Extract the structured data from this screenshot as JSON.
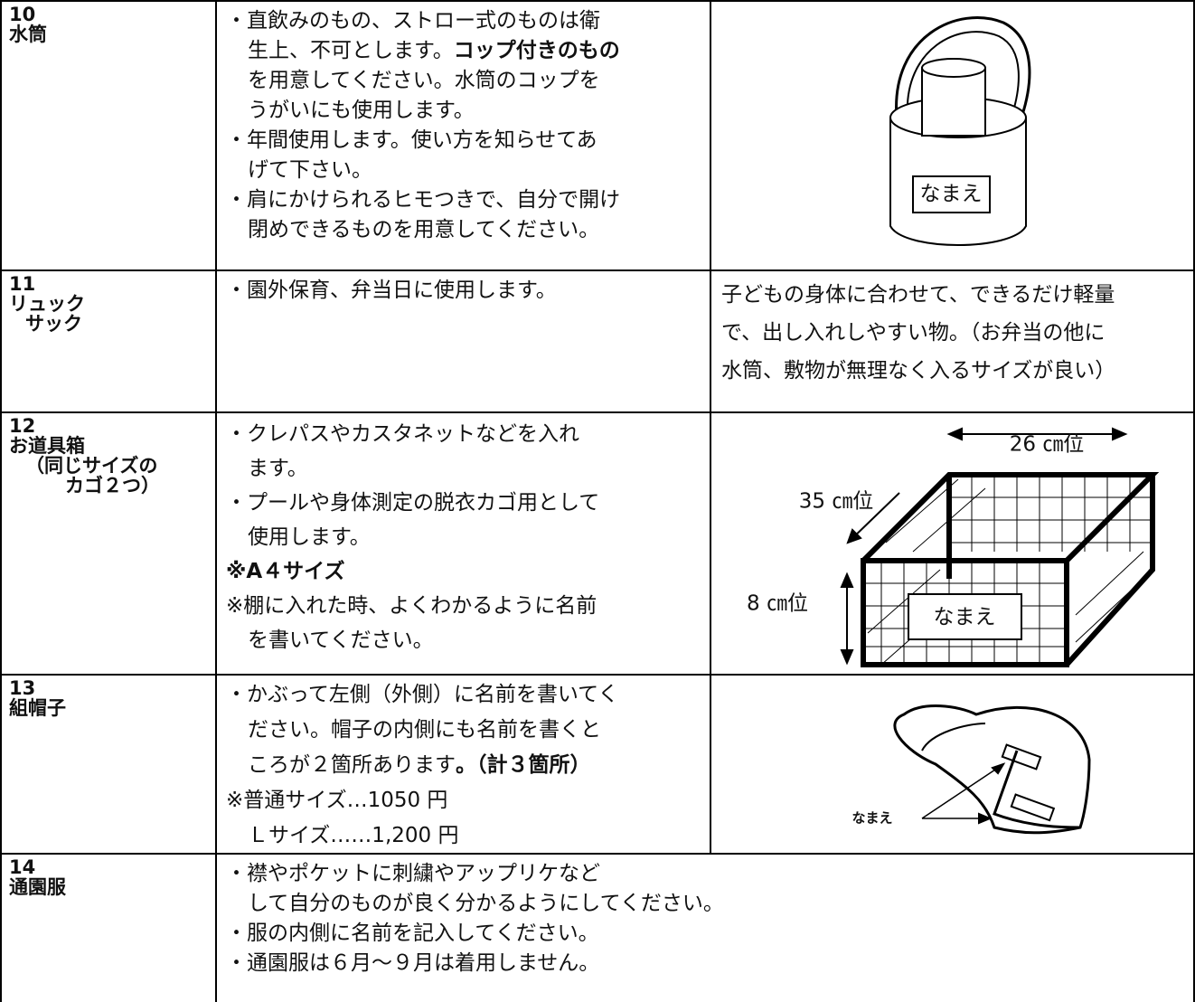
{
  "rows": [
    {
      "number": "10",
      "name": [
        "水筒"
      ],
      "notes": [
        [
          {
            "text": "・直飲みのもの、ストロー式のものは衛"
          }
        ],
        [
          {
            "text": "生上、不可とします。"
          },
          {
            "text": "コップ付きのもの",
            "bold": true
          }
        ],
        [
          {
            "text": "を用意してください。水筒のコップを"
          }
        ],
        [
          {
            "text": "うがいにも使用します。"
          }
        ],
        [
          {
            "text": "・年間使用します。使い方を知らせてあ"
          }
        ],
        [
          {
            "text": "げて下さい。"
          }
        ],
        [
          {
            "text": "・肩にかけられるヒモつきで、自分で開け"
          }
        ],
        [
          {
            "text": "閉めできるものを用意してください。"
          }
        ]
      ]
    },
    {
      "number": "11",
      "name": [
        "リュック",
        "サック"
      ],
      "notes": [
        [
          {
            "text": "・園外保育、弁当日に使用します。"
          }
        ]
      ],
      "description": [
        "子どもの身体に合わせて、できるだけ軽量",
        "で、出し入れしやすい物。（お弁当の他に",
        "水筒、敷物が無理なく入るサイズが良い）"
      ]
    },
    {
      "number": "12",
      "name": [
        "お道具箱",
        "（同じサイズの",
        "カゴ２つ）"
      ],
      "notes": [
        [
          {
            "text": "・クレパスやカスタネットなどを入れ"
          }
        ],
        [
          {
            "text": "ます。"
          }
        ],
        [
          {
            "text": "・プールや身体測定の脱衣カゴ用として"
          }
        ],
        [
          {
            "text": "使用します。"
          }
        ],
        [
          {
            "text": "※A４サイズ",
            "bold": true
          }
        ],
        [
          {
            "text": "※棚に入れた時、よくわかるように名前"
          }
        ],
        [
          {
            "text": "を書いてください。"
          }
        ]
      ]
    },
    {
      "number": "13",
      "name": [
        "組帽子"
      ],
      "notes": [
        [
          {
            "text": "・かぶって左側（外側）に名前を書いてく"
          }
        ],
        [
          {
            "text": "ださい。帽子の内側にも名前を書くと"
          }
        ],
        [
          {
            "text": "ころが２箇所あります"
          },
          {
            "text": "。（計３箇所）",
            "bold": true
          }
        ],
        [
          {
            "text": "※普通サイズ…1050 円"
          }
        ],
        [
          {
            "text": "Ｌサイズ……1,200 円"
          }
        ]
      ]
    },
    {
      "number": "14",
      "name": [
        "通園服"
      ],
      "notes": [
        [
          {
            "text": "・襟やポケットに刺繍やアップリケなど"
          }
        ],
        [
          {
            "text": "して自分のものが良く分かるようにしてください。"
          }
        ],
        [
          {
            "text": "・服の内側に名前を記入してください。"
          }
        ],
        [
          {
            "text": "・通園服は６月～９月は着用しません。"
          }
        ]
      ]
    }
  ],
  "illustrations": {
    "canteen_label": "なまえ",
    "box_width": "26 ㎝位",
    "box_depth": "35 ㎝位",
    "box_height": "8 ㎝位",
    "box_label": "なまえ",
    "cap_label": "なまえ"
  }
}
